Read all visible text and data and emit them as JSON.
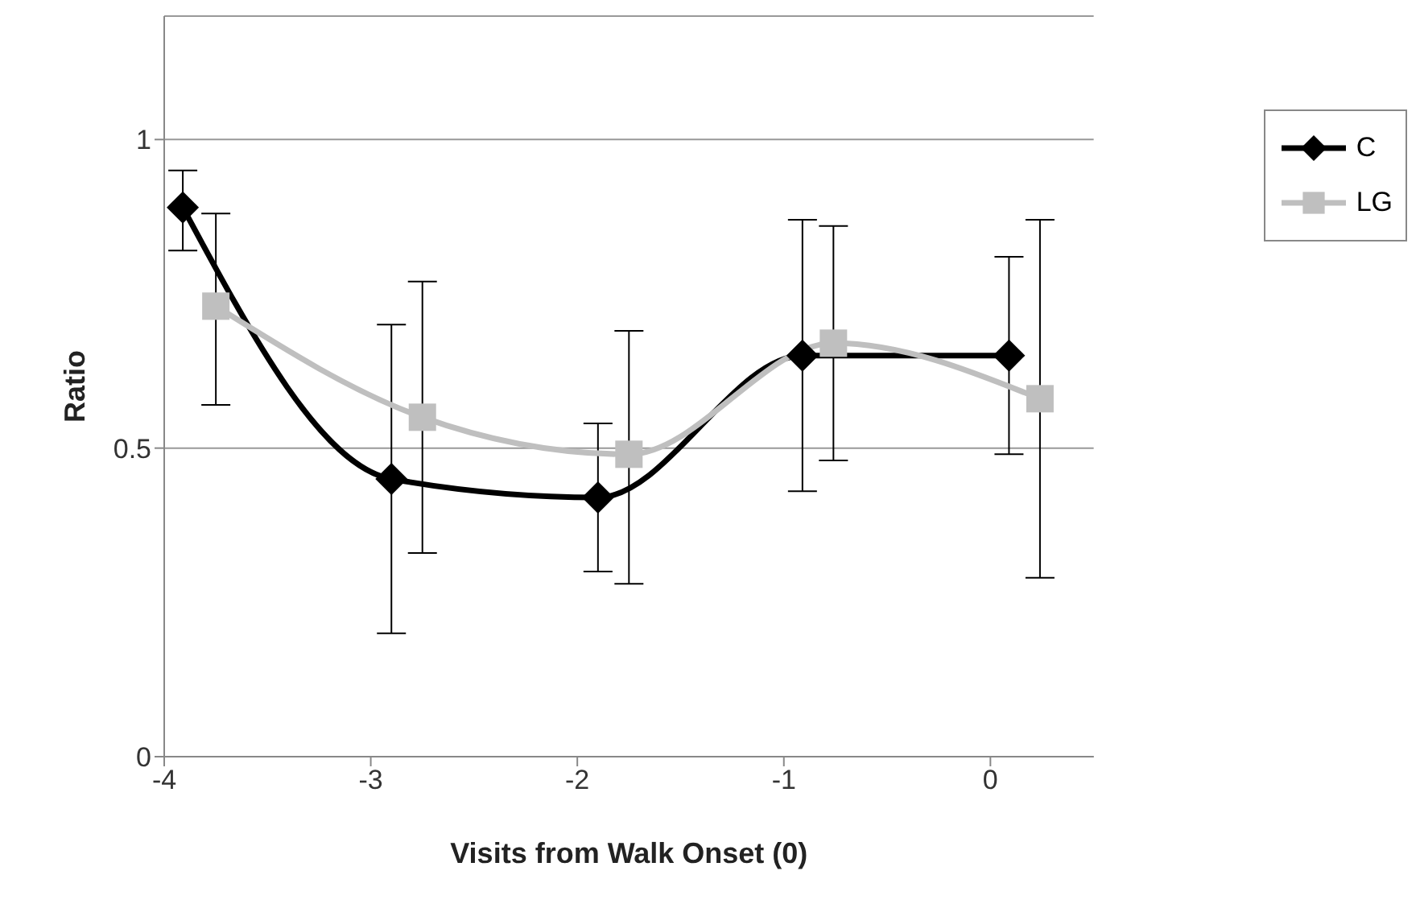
{
  "chart_data": {
    "type": "line",
    "xlabel": "Visits from Walk Onset (0)",
    "ylabel": "Ratio",
    "xlim": [
      -4,
      0.5
    ],
    "xticks": [
      -4,
      -3,
      -2,
      -1,
      0
    ],
    "ylim": [
      0,
      1.2
    ],
    "yticks": [
      0,
      0.5,
      1
    ],
    "grid": "y",
    "legend": "top right",
    "line_style": "solid",
    "series": [
      {
        "name": "C",
        "color": "#000000",
        "marker": "diamond",
        "x": [
          -3.91,
          -2.9,
          -1.9,
          -0.91,
          0.09
        ],
        "values": [
          0.89,
          0.45,
          0.42,
          0.65,
          0.65
        ],
        "errors": [
          [
            0.82,
            0.95
          ],
          [
            0.2,
            0.7
          ],
          [
            0.3,
            0.54
          ],
          [
            0.43,
            0.87
          ],
          [
            0.49,
            0.81
          ]
        ]
      },
      {
        "name": "LG",
        "color": "#bfbfbf",
        "marker": "square",
        "x": [
          -3.75,
          -2.75,
          -1.75,
          -0.76,
          0.24
        ],
        "values": [
          0.73,
          0.55,
          0.49,
          0.67,
          0.58
        ],
        "errors": [
          [
            0.57,
            0.88
          ],
          [
            0.33,
            0.77
          ],
          [
            0.28,
            0.69
          ],
          [
            0.48,
            0.86
          ],
          [
            0.29,
            0.87
          ]
        ]
      }
    ]
  }
}
